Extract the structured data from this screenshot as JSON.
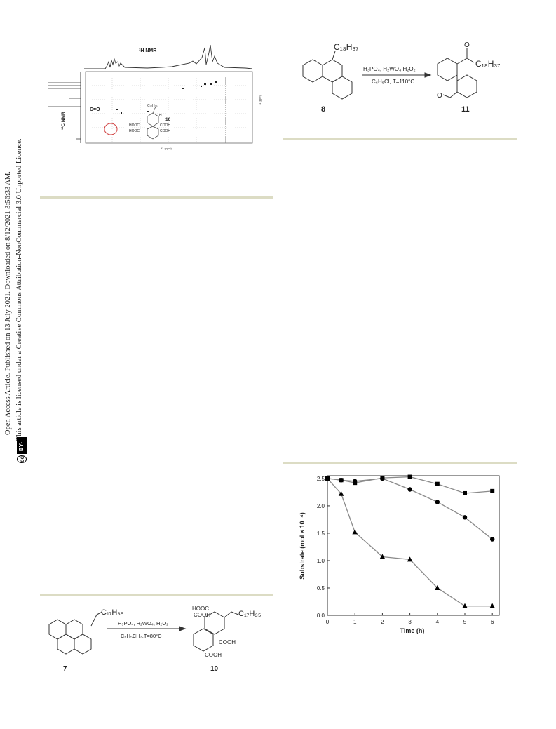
{
  "sidebar": {
    "line1": "Open Access Article. Published on 13 July 2021. Downloaded on 8/12/2021 3:56:33 AM.",
    "line2": "This article is licensed under a Creative Commons Attribution-NonCommercial 3.0 Unported Licence.",
    "badge_cc": "cc",
    "badge_label": "BY-NC"
  },
  "nmr_figure": {
    "h_label": "¹H NMR",
    "c_label": "¹³C NMR",
    "co_label": "C=O",
    "compound": "10",
    "substituent": "C₁₇H₃₅",
    "hooc_1": "HOOC",
    "hooc_2": "HOOC",
    "cooh_1": "COOH",
    "cooh_2": "COOH",
    "h_atom": "H",
    "x_unit": "f1 (ppm)",
    "y_unit": "f1 (ppm)"
  },
  "scheme_top": {
    "substituent_reactant": "C₁₈H₃₇",
    "reagents": "H₃PO₄, H₂WO₄,H₂O₂",
    "conditions": "C₆H₅Cl, T=110°C",
    "product_sub": "C₁₈H₃₇",
    "oxygen": "O",
    "reactant_label": "8",
    "product_label": "11"
  },
  "scheme_bottom": {
    "substituent_reactant": "C₁₇H₃₅",
    "reagents": "H₃PO₄, H₂WO₄, H₂O₂",
    "conditions": "C₆H₅CH₃,T=80°C",
    "product_sub": "C₁₇H₃₅",
    "hooc": "HOOC",
    "cooh_top": "COOH",
    "cooh_mid": "COOH",
    "cooh_bot": "COOH",
    "reactant_label": "7",
    "product_label": "10"
  },
  "chart_data": {
    "type": "scatter",
    "xlabel": "Time (h)",
    "ylabel": "Substrate (mol × 10⁻⁴)",
    "xlim": [
      0,
      6.25
    ],
    "ylim": [
      0,
      2.55
    ],
    "x_ticks": [
      "0",
      "1",
      "2",
      "3",
      "4",
      "5",
      "6"
    ],
    "y_ticks": [
      "0.0",
      "0.5",
      "1.0",
      "1.5",
      "2.0",
      "2.5"
    ],
    "line_color": "#8a8a8a",
    "marker_color": "#000000",
    "series": [
      {
        "marker": "square",
        "x": [
          0,
          0.5,
          1,
          2,
          3,
          4,
          5,
          6
        ],
        "y": [
          2.5,
          2.47,
          2.42,
          2.51,
          2.53,
          2.4,
          2.23,
          2.27
        ]
      },
      {
        "marker": "circle",
        "x": [
          0,
          0.5,
          1,
          2,
          3,
          4,
          5,
          6
        ],
        "y": [
          2.5,
          2.47,
          2.45,
          2.5,
          2.3,
          2.07,
          1.79,
          1.39
        ]
      },
      {
        "marker": "triangle",
        "x": [
          0,
          0.5,
          1,
          2,
          3,
          4,
          5,
          6
        ],
        "y": [
          2.5,
          2.22,
          1.52,
          1.07,
          1.02,
          0.5,
          0.17,
          0.17
        ]
      }
    ]
  }
}
